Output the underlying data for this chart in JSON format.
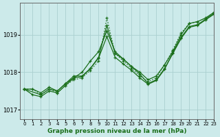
{
  "xlabel": "Graphe pression niveau de la mer (hPa)",
  "bg_color": "#cceaea",
  "grid_color": "#aacfcf",
  "line_color": "#1a6e1a",
  "xlim": [
    -0.5,
    23
  ],
  "ylim": [
    1016.75,
    1019.85
  ],
  "yticks": [
    1017,
    1018,
    1019
  ],
  "xticks": [
    0,
    1,
    2,
    3,
    4,
    5,
    6,
    7,
    8,
    9,
    10,
    11,
    12,
    13,
    14,
    15,
    16,
    17,
    18,
    19,
    20,
    21,
    22,
    23
  ],
  "series": [
    {
      "x": [
        0,
        1,
        2,
        3,
        4,
        5,
        6,
        7,
        8,
        9,
        10,
        11,
        12,
        13,
        14,
        15,
        16,
        17,
        18,
        19,
        20,
        21,
        22,
        23
      ],
      "y": [
        1017.55,
        1017.55,
        1017.4,
        1017.55,
        1017.45,
        1017.65,
        1017.8,
        1017.85,
        1018.05,
        1018.3,
        1019.45,
        1018.5,
        1018.3,
        1018.1,
        1017.9,
        1017.75,
        1017.85,
        1018.2,
        1018.6,
        1019.05,
        1019.3,
        1019.35,
        1019.45,
        1019.6
      ],
      "style": "dotted"
    },
    {
      "x": [
        0,
        1,
        2,
        3,
        4,
        5,
        6,
        7,
        8,
        9,
        10,
        11,
        12,
        13,
        14,
        15,
        16,
        17,
        18,
        19,
        20,
        21,
        22,
        23
      ],
      "y": [
        1017.55,
        1017.4,
        1017.35,
        1017.5,
        1017.45,
        1017.65,
        1017.85,
        1018.0,
        1018.3,
        1018.55,
        1019.1,
        1018.55,
        1018.35,
        1018.15,
        1017.95,
        1017.7,
        1017.8,
        1018.1,
        1018.5,
        1018.9,
        1019.2,
        1019.25,
        1019.4,
        1019.55
      ],
      "style": "solid"
    },
    {
      "x": [
        0,
        2,
        3,
        4,
        5,
        6,
        7,
        8,
        9,
        10,
        11,
        12,
        13,
        14,
        15,
        16,
        17,
        18,
        19,
        20,
        21,
        22,
        23
      ],
      "y": [
        1017.55,
        1017.4,
        1017.55,
        1017.5,
        1017.7,
        1017.9,
        1017.9,
        1018.1,
        1018.4,
        1019.25,
        1018.5,
        1018.35,
        1018.15,
        1018.0,
        1017.8,
        1017.9,
        1018.2,
        1018.55,
        1019.0,
        1019.3,
        1019.35,
        1019.45,
        1019.6
      ],
      "style": "solid"
    },
    {
      "x": [
        0,
        1,
        2,
        3,
        4,
        5,
        6,
        7,
        8,
        9,
        10,
        11,
        12,
        13,
        14,
        15,
        16,
        17,
        18,
        19,
        20,
        21,
        22,
        23
      ],
      "y": [
        1017.55,
        1017.55,
        1017.45,
        1017.6,
        1017.5,
        1017.7,
        1017.85,
        1017.88,
        1018.1,
        1018.38,
        1018.95,
        1018.4,
        1018.22,
        1018.05,
        1017.85,
        1017.68,
        1017.78,
        1018.08,
        1018.52,
        1018.93,
        1019.22,
        1019.27,
        1019.42,
        1019.57
      ],
      "style": "solid"
    }
  ]
}
